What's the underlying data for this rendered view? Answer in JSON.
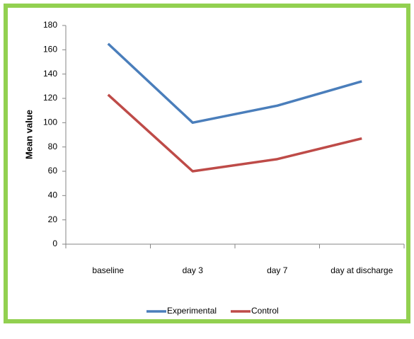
{
  "chart_data": {
    "type": "line",
    "y_label": "Mean value",
    "categories": [
      "baseline",
      "day 3",
      "day 7",
      "day at discharge"
    ],
    "series": [
      {
        "name": "Experimental",
        "color": "#4a7ebb",
        "values": [
          165,
          100,
          114,
          134
        ]
      },
      {
        "name": "Control",
        "color": "#be4b48",
        "values": [
          123,
          60,
          70,
          87
        ]
      }
    ],
    "ylim": [
      0,
      180
    ],
    "yticks": [
      0,
      20,
      40,
      60,
      80,
      100,
      120,
      140,
      160,
      180
    ],
    "grid": false,
    "legend": "bottom"
  }
}
